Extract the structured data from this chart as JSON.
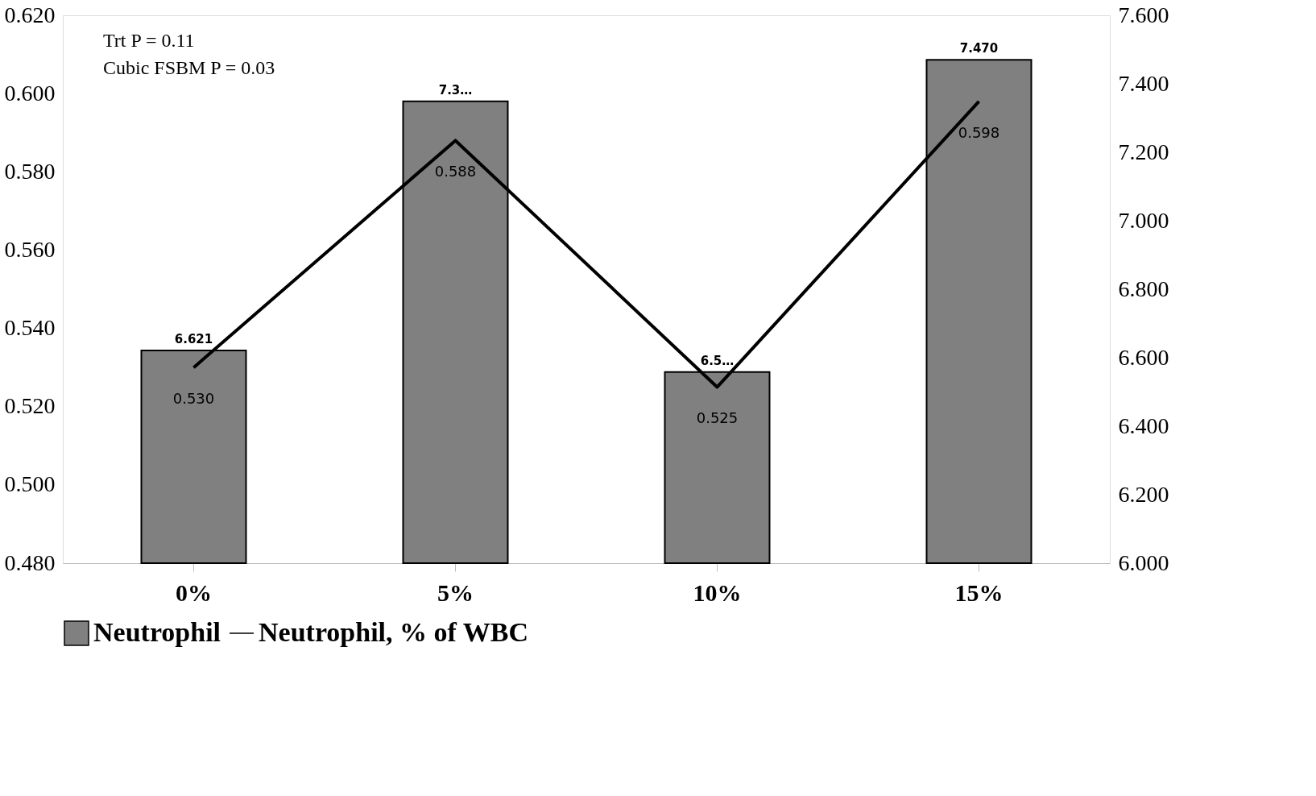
{
  "chart_data": {
    "type": "bar",
    "categories": [
      "0%",
      "5%",
      "10%",
      "15%"
    ],
    "series": [
      {
        "name": "Neutrophil",
        "axis": "y2",
        "color": "#808080",
        "values": [
          6.621,
          7.349,
          6.558,
          7.47
        ],
        "value_labels": [
          "6.621",
          "7.3…",
          "6.5…",
          "7.470"
        ]
      },
      {
        "name": "Neutrophil, % of WBC",
        "type": "line",
        "color": "#000000",
        "values": [
          0.53,
          0.588,
          0.525,
          0.598
        ],
        "value_labels": [
          "0.530",
          "0.588",
          "0.525",
          "0.598"
        ]
      }
    ],
    "ylim": [
      0.48,
      0.62
    ],
    "yticks": [
      {
        "value": 0.48,
        "label": "0.480"
      },
      {
        "value": 0.5,
        "label": "0.500"
      },
      {
        "value": 0.52,
        "label": "0.520"
      },
      {
        "value": 0.54,
        "label": "0.540"
      },
      {
        "value": 0.56,
        "label": "0.560"
      },
      {
        "value": 0.58,
        "label": "0.580"
      },
      {
        "value": 0.6,
        "label": "0.600"
      },
      {
        "value": 0.62,
        "label": "0.620"
      }
    ],
    "y2lim": [
      6.0,
      7.6
    ],
    "y2ticks": [
      {
        "value": 6.0,
        "label": "6.000"
      },
      {
        "value": 6.2,
        "label": "6.200"
      },
      {
        "value": 6.4,
        "label": "6.400"
      },
      {
        "value": 6.6,
        "label": "6.600"
      },
      {
        "value": 6.8,
        "label": "6.800"
      },
      {
        "value": 7.0,
        "label": "7.000"
      },
      {
        "value": 7.2,
        "label": "7.200"
      },
      {
        "value": 7.4,
        "label": "7.400"
      },
      {
        "value": 7.6,
        "label": "7.600"
      }
    ],
    "annotations": [
      "Trt P  = 0.11",
      "Cubic FSBM P = 0.03"
    ],
    "grid": false,
    "legend": "bottom",
    "marker": "none",
    "line_style": "solid"
  }
}
